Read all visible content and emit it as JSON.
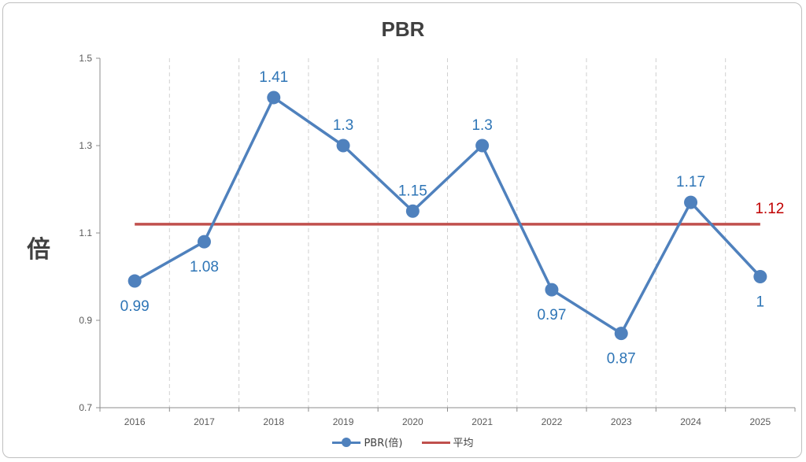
{
  "chart_data": {
    "type": "line",
    "title": "PBR",
    "ylabel": "倍",
    "xlabel": "",
    "categories": [
      "2016",
      "2017",
      "2018",
      "2019",
      "2020",
      "2021",
      "2022",
      "2023",
      "2024",
      "2025"
    ],
    "series": [
      {
        "name": "PBR(倍)",
        "color": "#4f81bd",
        "values": [
          0.99,
          1.08,
          1.41,
          1.3,
          1.15,
          1.3,
          0.97,
          0.87,
          1.17,
          1
        ],
        "labels": [
          "0.99",
          "1.08",
          "1.41",
          "1.3",
          "1.15",
          "1.3",
          "0.97",
          "0.87",
          "1.17",
          "1"
        ]
      },
      {
        "name": "平均",
        "color": "#c0504d",
        "values": [
          1.12,
          1.12,
          1.12,
          1.12,
          1.12,
          1.12,
          1.12,
          1.12,
          1.12,
          1.12
        ],
        "end_label": "1.12"
      }
    ],
    "yticks": [
      "0.7",
      "0.9",
      "1.1",
      "1.3",
      "1.5"
    ],
    "ylim": [
      0.7,
      1.5
    ],
    "grid": "vertical-dashed",
    "legend": "bottom",
    "data_label_color": "#2e75b6",
    "avg_label_color": "#c00000"
  }
}
